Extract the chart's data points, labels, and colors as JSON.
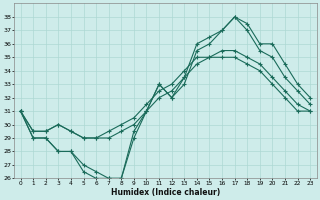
{
  "title": "",
  "xlabel": "Humidex (Indice chaleur)",
  "x": [
    0,
    1,
    2,
    3,
    4,
    5,
    6,
    7,
    8,
    9,
    10,
    11,
    12,
    13,
    14,
    15,
    16,
    17,
    18,
    19,
    20,
    21,
    22,
    23
  ],
  "line_zigzag": [
    31,
    29,
    29,
    28,
    28,
    27,
    26.5,
    26,
    26,
    29.5,
    31,
    33,
    32,
    33.5,
    36,
    36.5,
    37,
    38,
    37.5,
    36,
    36,
    34.5,
    33,
    32
  ],
  "line_top": [
    31,
    29,
    29,
    28,
    28,
    26.5,
    26,
    26,
    26,
    29,
    31,
    33,
    32,
    33,
    35.5,
    36,
    37,
    38,
    37,
    35.5,
    35,
    33.5,
    32.5,
    31.5
  ],
  "line_mid1": [
    31,
    29.5,
    29.5,
    30,
    29.5,
    29,
    29,
    29,
    29.5,
    30,
    31,
    32,
    32.5,
    33.5,
    34.5,
    35,
    35,
    35,
    34.5,
    34,
    33,
    32,
    31,
    31
  ],
  "line_mid2": [
    31,
    29.5,
    29.5,
    30,
    29.5,
    29,
    29,
    29.5,
    30,
    30.5,
    31.5,
    32.5,
    33,
    34,
    35,
    35,
    35.5,
    35.5,
    35,
    34.5,
    33.5,
    32.5,
    31.5,
    31
  ],
  "ylim_min": 26,
  "ylim_max": 39,
  "yticks": [
    26,
    27,
    28,
    29,
    30,
    31,
    32,
    33,
    34,
    35,
    36,
    37,
    38
  ],
  "xticks": [
    0,
    1,
    2,
    3,
    4,
    5,
    6,
    7,
    8,
    9,
    10,
    11,
    12,
    13,
    14,
    15,
    16,
    17,
    18,
    19,
    20,
    21,
    22,
    23
  ],
  "bg_color": "#ceecea",
  "grid_color": "#aed8d4",
  "line_color": "#1a6b5a"
}
